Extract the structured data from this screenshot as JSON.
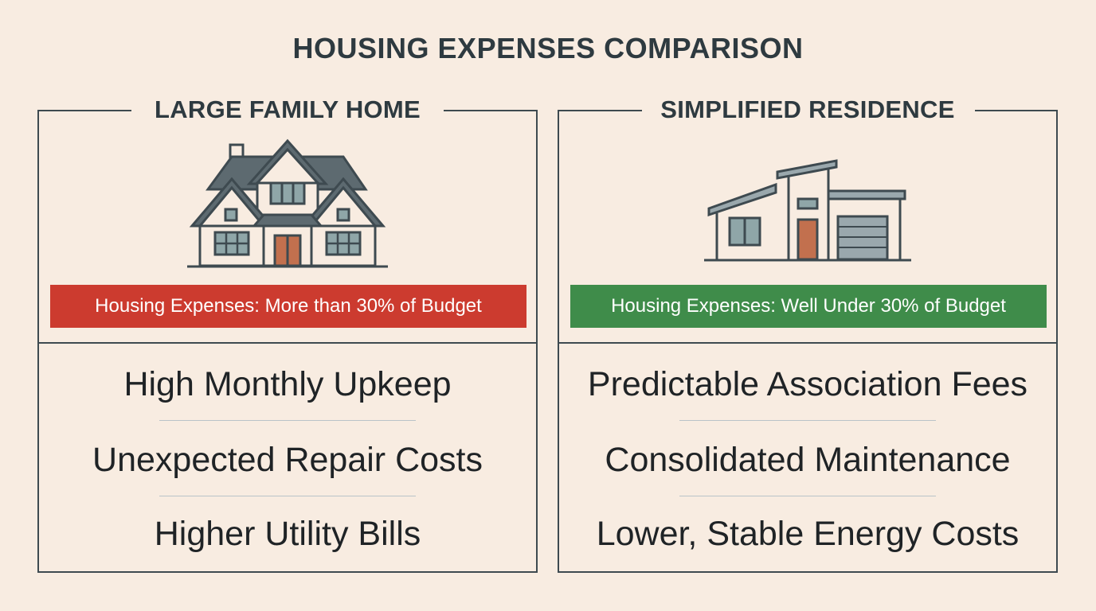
{
  "title": "HOUSING EXPENSES COMPARISON",
  "panels": {
    "left": {
      "heading": "LARGE FAMILY HOME",
      "icon": "large-house-icon",
      "banner": "Housing Expenses: More than 30% of Budget",
      "banner_color": "#cc3b2f",
      "items": [
        "High Monthly Upkeep",
        "Unexpected Repair Costs",
        "Higher Utility Bills"
      ]
    },
    "right": {
      "heading": "SIMPLIFIED RESIDENCE",
      "icon": "modern-house-icon",
      "banner": "Housing Expenses: Well Under 30% of Budget",
      "banner_color": "#3f8c4a",
      "items": [
        "Predictable Association Fees",
        "Consolidated Maintenance",
        "Lower, Stable Energy Costs"
      ]
    }
  },
  "colors": {
    "background": "#f8ece1",
    "line": "#3e4a50",
    "roof": "#5d6a70",
    "window": "#8fa6a8",
    "door": "#c2704e"
  }
}
